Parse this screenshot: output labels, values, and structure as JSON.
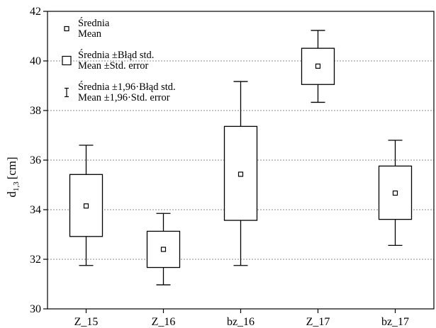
{
  "chart_data": {
    "type": "box",
    "categories": [
      "Z_15",
      "Z_16",
      "bz_16",
      "Z_17",
      "bz_17"
    ],
    "ylabel": {
      "main": "d",
      "subscript": "1,3",
      "unit": "[cm]"
    },
    "ylim": [
      30,
      42
    ],
    "yticks": [
      30,
      32,
      34,
      36,
      38,
      40,
      42
    ],
    "grid": true,
    "legend_position": "top-left",
    "series": [
      {
        "category": "Z_15",
        "mean": 34.15,
        "se_low": 32.92,
        "se_high": 35.42,
        "ci_low": 31.75,
        "ci_high": 36.6
      },
      {
        "category": "Z_16",
        "mean": 32.4,
        "se_low": 31.67,
        "se_high": 33.13,
        "ci_low": 30.97,
        "ci_high": 33.85
      },
      {
        "category": "bz_16",
        "mean": 35.43,
        "se_low": 33.57,
        "se_high": 37.36,
        "ci_low": 31.75,
        "ci_high": 39.17
      },
      {
        "category": "Z_17",
        "mean": 39.79,
        "se_low": 39.05,
        "se_high": 40.51,
        "ci_low": 38.33,
        "ci_high": 41.23
      },
      {
        "category": "bz_17",
        "mean": 34.67,
        "se_low": 33.61,
        "se_high": 35.76,
        "ci_low": 32.56,
        "ci_high": 36.8
      }
    ],
    "legend": [
      {
        "symbol": "mean",
        "line1": "Średnia",
        "line2": "Mean"
      },
      {
        "symbol": "box",
        "line1": "Średnia ±Błąd std.",
        "line2": "Mean ±Std. error"
      },
      {
        "symbol": "whisker",
        "line1": "Średnia ±1,96·Błąd std.",
        "line2": "Mean ±1,96·Std. error"
      }
    ]
  }
}
